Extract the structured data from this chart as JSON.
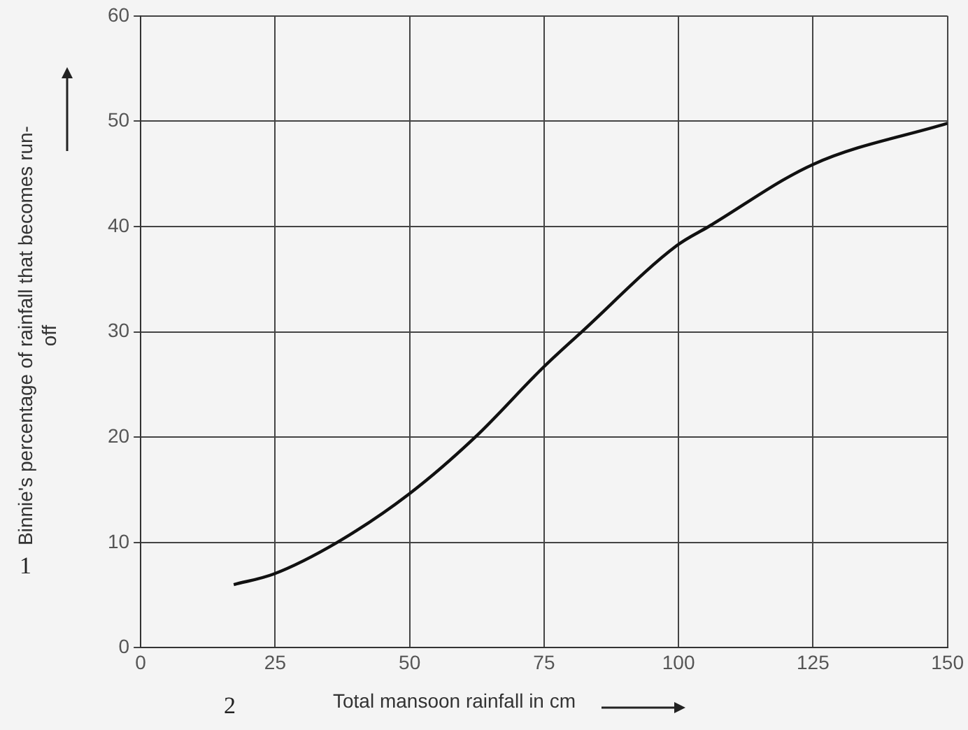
{
  "chart_data": {
    "type": "line",
    "xlabel": "Total mansoon rainfall in cm",
    "ylabel": "Binnie's percentage of rainfall that becomes run-off",
    "x": [
      17.3,
      24.7,
      36.5,
      49.9,
      62.2,
      75,
      82,
      99.7,
      105.6,
      125,
      150
    ],
    "series": [
      {
        "color": "#111111",
        "values": [
          6.0,
          7.0,
          10,
          14.6,
          20,
          26.7,
          30,
          38.2,
          40,
          45.9,
          49.8
        ]
      }
    ],
    "xlim": [
      0,
      150
    ],
    "xticks": [
      0,
      25,
      50,
      75,
      100,
      125,
      150
    ],
    "ylim": [
      0,
      60
    ],
    "yticks": [
      0,
      10,
      20,
      30,
      40,
      50,
      60
    ],
    "grid": true,
    "marker": "none",
    "line_style": "solid",
    "legend": false,
    "annotations": [
      "1",
      "2"
    ]
  }
}
